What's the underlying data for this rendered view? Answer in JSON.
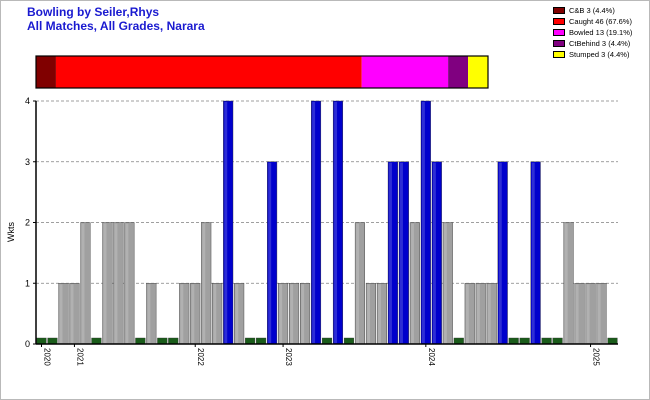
{
  "title": {
    "line1": "Bowling by Seiler,Rhys",
    "line2": "All Matches, All Grades, Narara"
  },
  "legend": [
    {
      "label": "C&B 3 (4.4%)",
      "color": "#800000"
    },
    {
      "label": "Caught 46 (67.6%)",
      "color": "#ff0000"
    },
    {
      "label": "Bowled 13 (19.1%)",
      "color": "#ff00ff"
    },
    {
      "label": "CtBehind 3 (4.4%)",
      "color": "#800080"
    },
    {
      "label": "Stumped 3 (4.4%)",
      "color": "#ffff00"
    }
  ],
  "chart_data": {
    "type": "bar",
    "ylabel": "Wkts",
    "ylim": [
      0,
      4
    ],
    "yticks": [
      0,
      1,
      2,
      3,
      4
    ],
    "grid": true,
    "dismissal_breakdown": [
      {
        "name": "C&B",
        "value": 3,
        "color": "#800000"
      },
      {
        "name": "Caught",
        "value": 46,
        "color": "#ff0000"
      },
      {
        "name": "Bowled",
        "value": 13,
        "color": "#ff00ff"
      },
      {
        "name": "CtBehind",
        "value": 3,
        "color": "#800080"
      },
      {
        "name": "Stumped",
        "value": 3,
        "color": "#ffff00"
      }
    ],
    "colors": {
      "nil": "#1a5c1a",
      "normal": "#a0a0a0",
      "best": "#0000cc"
    },
    "year_labels": [
      {
        "label": "2020",
        "match": 1
      },
      {
        "label": "2021",
        "match": 4
      },
      {
        "label": "2022",
        "match": 15
      },
      {
        "label": "2023",
        "match": 23
      },
      {
        "label": "2024",
        "match": 36
      },
      {
        "label": "2025",
        "match": 51
      }
    ],
    "values": [
      0,
      0,
      1,
      1,
      2,
      0,
      2,
      2,
      2,
      0,
      1,
      0,
      0,
      1,
      1,
      2,
      1,
      4,
      1,
      0,
      0,
      3,
      1,
      1,
      1,
      4,
      0,
      4,
      0,
      2,
      1,
      1,
      3,
      3,
      2,
      4,
      3,
      2,
      0,
      1,
      1,
      1,
      3,
      0,
      0,
      3,
      0,
      0,
      2,
      1,
      1,
      1,
      0
    ]
  }
}
